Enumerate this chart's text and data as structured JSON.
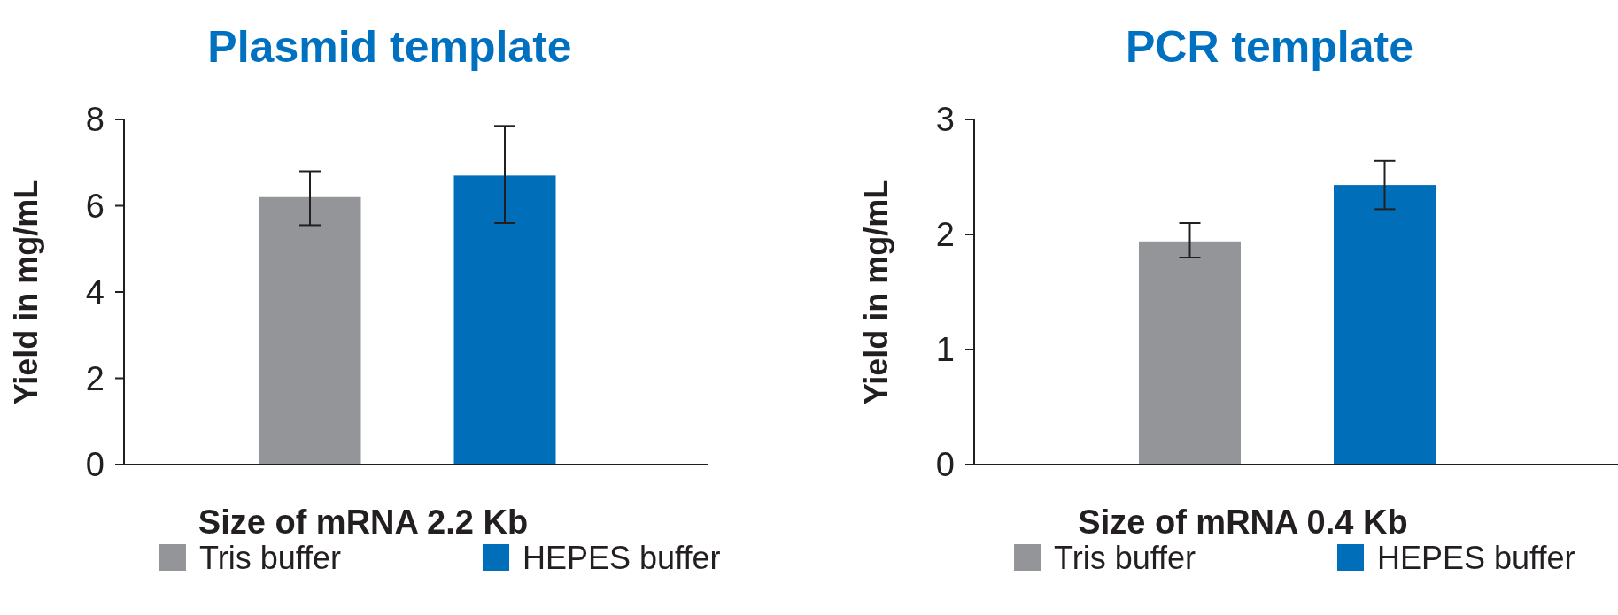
{
  "chart_data": [
    {
      "type": "bar",
      "title": "Plasmid template",
      "xlabel": "Size of mRNA 2.2 Kb",
      "ylabel": "Yield in mg/mL",
      "categories": [
        null
      ],
      "series": [
        {
          "name": "Tris buffer",
          "color": "#939598",
          "values": [
            6.2
          ],
          "errors": [
            [
              5.55,
              6.8
            ]
          ]
        },
        {
          "name": "HEPES buffer",
          "color": "#006eb9",
          "values": [
            6.7
          ],
          "errors": [
            [
              5.6,
              7.85
            ]
          ]
        }
      ],
      "ylim": [
        0,
        8
      ],
      "yticks": [
        0,
        2,
        4,
        6,
        8
      ],
      "legend": "bottom"
    },
    {
      "type": "bar",
      "title": "PCR template",
      "xlabel": "Size of mRNA 0.4 Kb",
      "ylabel": "Yield in mg/mL",
      "categories": [
        null
      ],
      "series": [
        {
          "name": "Tris buffer",
          "color": "#939598",
          "values": [
            1.94
          ],
          "errors": [
            [
              1.8,
              2.1
            ]
          ]
        },
        {
          "name": "HEPES buffer",
          "color": "#006eb9",
          "values": [
            2.43
          ],
          "errors": [
            [
              2.22,
              2.64
            ]
          ]
        }
      ],
      "ylim": [
        0,
        3
      ],
      "yticks": [
        0,
        1,
        2,
        3
      ],
      "legend": "bottom"
    }
  ]
}
